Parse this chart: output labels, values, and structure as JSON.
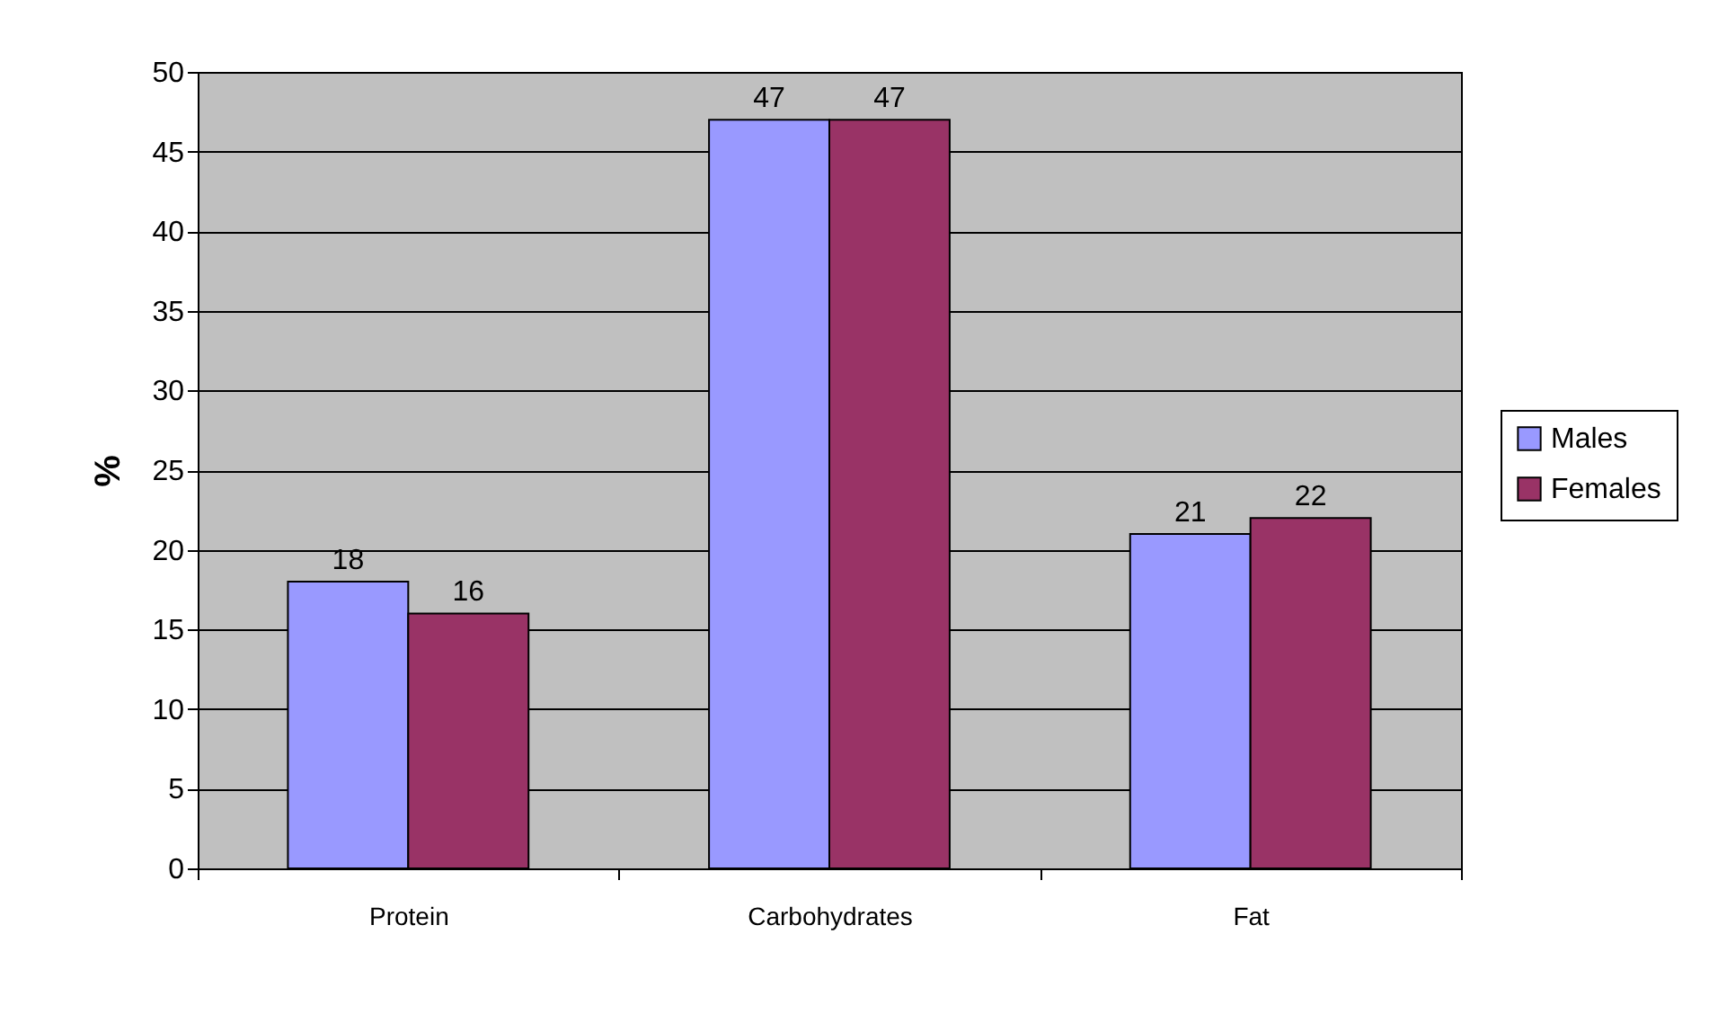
{
  "chart_data": {
    "type": "bar",
    "ylabel": "%",
    "categories": [
      "Protein",
      "Carbohydrates",
      "Fat"
    ],
    "series": [
      {
        "name": "Males",
        "color": "#9999ff",
        "values": [
          18,
          47,
          21
        ]
      },
      {
        "name": "Females",
        "color": "#993366",
        "values": [
          16,
          47,
          22
        ]
      }
    ],
    "ylim": [
      0,
      50
    ],
    "yticks": [
      0,
      5,
      10,
      15,
      20,
      25,
      30,
      35,
      40,
      45,
      50
    ],
    "grid": "y",
    "legend": "right",
    "data_labels": true
  }
}
